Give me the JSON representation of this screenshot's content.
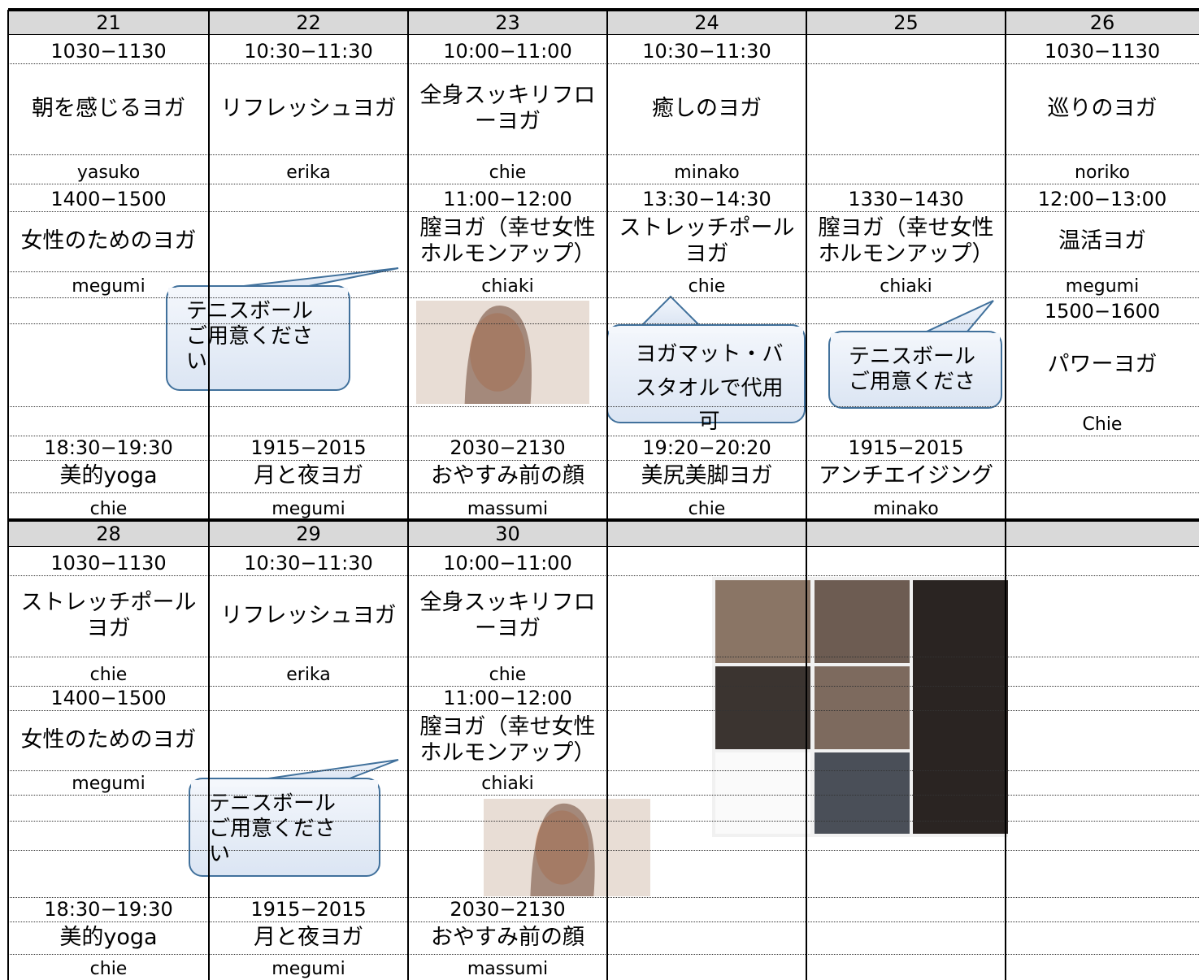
{
  "weeks": [
    {
      "days": [
        "21",
        "22",
        "23",
        "24",
        "25",
        "26"
      ],
      "rows": [
        [
          "1030−1130",
          "10:30−11:30",
          "10:00−11:00",
          "10:30−11:30",
          null,
          "1030−1130"
        ],
        [
          "朝を感じるヨガ",
          "リフレッシュヨガ",
          "全身スッキリフローヨガ",
          "癒しのヨガ",
          null,
          "巡りのヨガ"
        ],
        [
          "yasuko",
          "erika",
          "chie",
          "minako",
          null,
          "noriko"
        ],
        [
          "1400−1500",
          null,
          "11:00−12:00",
          "13:30−14:30",
          "1330−1430",
          "12:00−13:00"
        ],
        [
          "女性のためのヨガ",
          null,
          "膣ヨガ（幸せ女性ホルモンアップ）",
          "ストレッチポールヨガ",
          "膣ヨガ（幸せ女性ホルモンアップ）",
          "温活ヨガ"
        ],
        [
          "megumi",
          null,
          "chiaki",
          "chie",
          "chiaki",
          "megumi"
        ],
        [
          null,
          null,
          null,
          null,
          null,
          "1500−1600"
        ],
        [
          null,
          null,
          null,
          null,
          null,
          "パワーヨガ"
        ],
        [
          null,
          null,
          null,
          null,
          null,
          "Chie"
        ],
        [
          "18:30−19:30",
          "1915−2015",
          "2030−2130",
          "19:20−20:20",
          "1915−2015",
          null
        ],
        [
          "美的yoga",
          "月と夜ヨガ",
          "おやすみ前の顔",
          "美尻美脚ヨガ",
          "アンチエイジング",
          null
        ],
        [
          "chie",
          "megumi",
          "massumi",
          "chie",
          "minako",
          null
        ]
      ],
      "callouts": [
        "テニスボールご用意ください",
        "ヨガマット・バスタオルで代用可",
        "テニスボールご用意くださ"
      ]
    },
    {
      "days": [
        "28",
        "29",
        "30",
        null,
        null,
        null
      ],
      "rows": [
        [
          "1030−1130",
          "10:30−11:30",
          "10:00−11:00",
          null,
          null,
          null
        ],
        [
          "ストレッチポールヨガ",
          "リフレッシュヨガ",
          "全身スッキリフローヨガ",
          null,
          null,
          null
        ],
        [
          "chie",
          "erika",
          "chie",
          null,
          null,
          null
        ],
        [
          "1400−1500",
          null,
          "11:00−12:00",
          null,
          null,
          null
        ],
        [
          "女性のためのヨガ",
          null,
          "膣ヨガ（幸せ女性ホルモンアップ）",
          null,
          null,
          null
        ],
        [
          "megumi",
          null,
          "chiaki",
          null,
          null,
          null
        ],
        [
          null,
          null,
          null,
          null,
          null,
          null
        ],
        [
          null,
          null,
          null,
          null,
          null,
          null
        ],
        [
          null,
          null,
          null,
          null,
          null,
          null
        ],
        [
          "18:30−19:30",
          "1915−2015",
          "2030−2130",
          null,
          null,
          null
        ],
        [
          "美的yoga",
          "月と夜ヨガ",
          "おやすみ前の顔",
          null,
          null,
          null
        ],
        [
          "chie",
          "megumi",
          "massumi",
          null,
          null,
          null
        ]
      ],
      "callouts": [
        "テニスボールご用意ください"
      ]
    }
  ]
}
